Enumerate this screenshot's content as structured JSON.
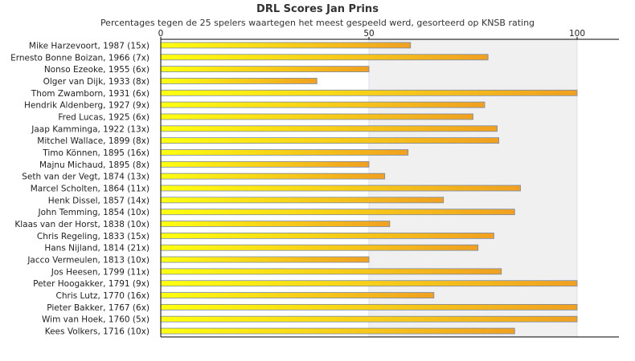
{
  "chart_data": {
    "type": "bar",
    "orientation": "horizontal",
    "title": "DRL Scores Jan Prins",
    "subtitle": "Percentages tegen de 25 spelers waartegen het meest gespeeld werd, gesorteerd op KNSB rating",
    "xlim": [
      0,
      110
    ],
    "xticks": [
      0,
      50,
      100
    ],
    "categories": [
      "Mike Harzevoort, 1987 (15x)",
      "Ernesto Bonne Boizan, 1966 (7x)",
      "Nonso Ezeoke, 1955 (6x)",
      "Olger van Dijk, 1933 (8x)",
      "Thom Zwamborn, 1931 (6x)",
      "Hendrik Aldenberg, 1927 (9x)",
      "Fred Lucas, 1925 (6x)",
      "Jaap Kamminga, 1922 (13x)",
      "Mitchel Wallace, 1899 (8x)",
      "Timo Können, 1895 (16x)",
      "Majnu Michaud, 1895 (8x)",
      "Seth van der Vegt, 1874 (13x)",
      "Marcel Scholten, 1864 (11x)",
      "Henk Dissel, 1857 (14x)",
      "John Temming, 1854 (10x)",
      "Klaas van der Horst, 1838 (10x)",
      "Chris Regeling, 1833 (15x)",
      "Hans Nijland, 1814 (21x)",
      "Jacco Vermeulen, 1813 (10x)",
      "Jos Heesen, 1799 (11x)",
      "Peter Hoogakker, 1791 (9x)",
      "Chris Lutz, 1770 (16x)",
      "Pieter Bakker, 1767 (6x)",
      "Wim van Hoek, 1760 (5x)",
      "Kees Volkers, 1716 (10x)"
    ],
    "values": [
      60,
      78.6,
      50,
      37.5,
      100,
      77.8,
      75,
      80.8,
      81.2,
      59.4,
      50,
      53.8,
      86.4,
      67.9,
      85,
      55,
      80,
      76.2,
      50,
      81.8,
      100,
      65.6,
      100,
      100,
      85
    ],
    "grid": true,
    "colors": {
      "bar_start": "#ffff10",
      "bar_end": "#f0a020",
      "bar_border": "#7a8aa8",
      "plot_bg": "#ffffff",
      "band_bg": "#f0f0f0",
      "gridline": "#dde2ea",
      "axis": "#000000"
    }
  }
}
